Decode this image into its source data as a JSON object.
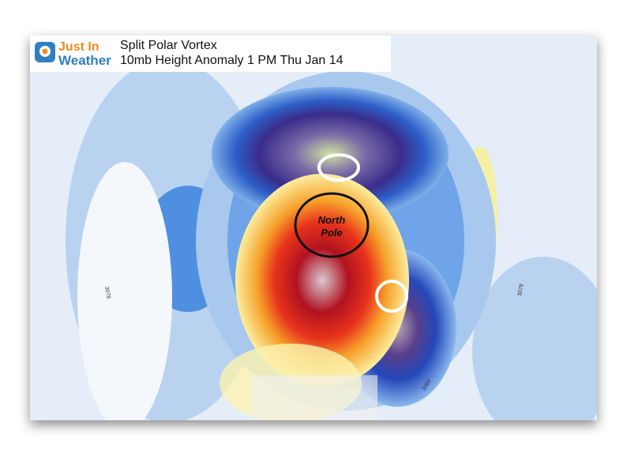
{
  "logo": {
    "line1": "Just In",
    "line2": "Weather"
  },
  "title": "Split Polar Vortex",
  "subtitle": "10mb Height Anomaly 1 PM Thu Jan 14",
  "annotation": [
    "North",
    "Pole"
  ],
  "contour_labels": [
    "3078",
    "3078",
    "3060"
  ]
}
